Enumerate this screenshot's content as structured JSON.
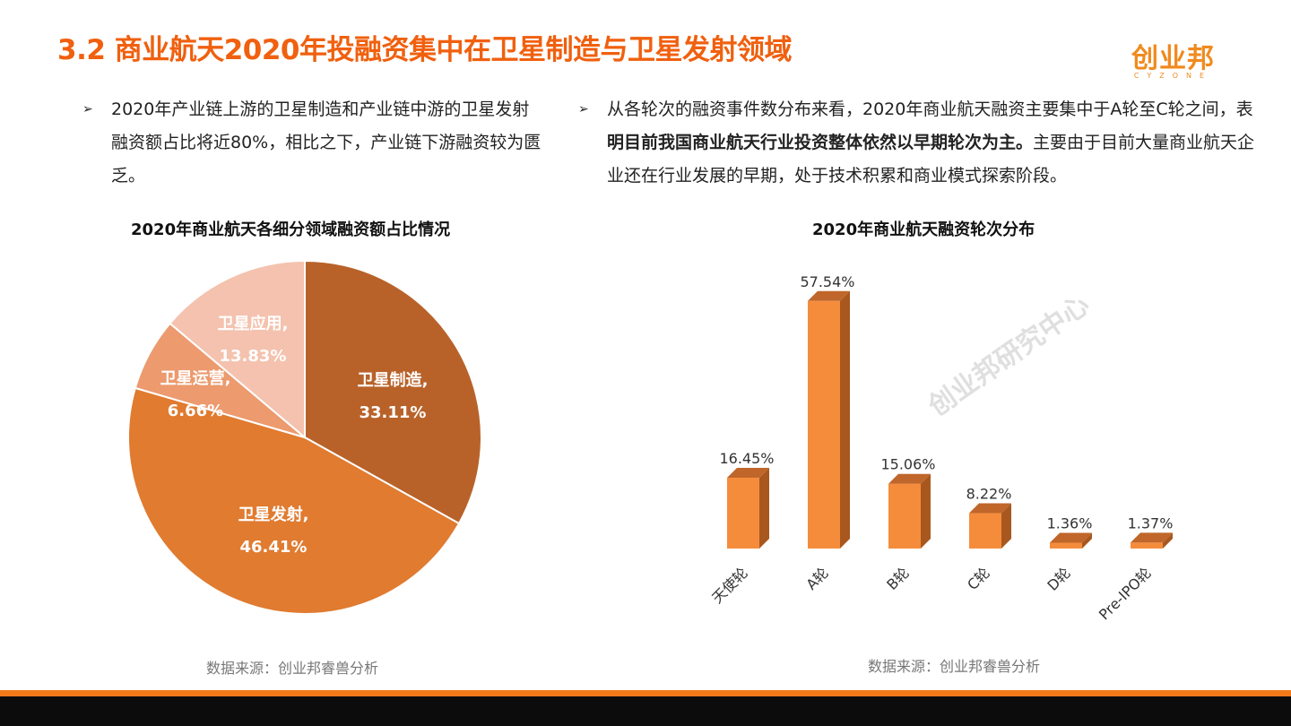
{
  "title": "3.2 商业航天2020年投融资集中在卫星制造与卫星发射领域",
  "logo": {
    "cn": "创业邦",
    "en": "CYZONE"
  },
  "left_bullet": "2020年产业链上游的卫星制造和产业链中游的卫星发射融资额占比将近80%，相比之下，产业链下游融资较为匮乏。",
  "right_bullet": {
    "pre": "从各轮次的融资事件数分布来看，2020年商业航天融资主要集中于A轮至C轮之间，表",
    "bold": "明目前我国商业航天行业投资整体依然以早期轮次为主。",
    "post": "主要由于目前大量商业航天企业还在行业发展的早期，处于技术积累和商业模式探索阶段。"
  },
  "bullet_marker": "➢",
  "source_left": "数据来源：创业邦睿兽分析",
  "source_right": "数据来源：创业邦睿兽分析",
  "watermark": "创业邦研究中心",
  "chart_data": [
    {
      "type": "pie",
      "title": "2020年商业航天各细分领域融资额占比情况",
      "slices": [
        {
          "label": "卫星制造",
          "value": 33.11,
          "display": "33.11%",
          "color": "#B8622A"
        },
        {
          "label": "卫星发射",
          "value": 46.41,
          "display": "46.41%",
          "color": "#E07B30"
        },
        {
          "label": "卫星运营",
          "value": 6.66,
          "display": "6.66%",
          "color": "#EC9A6E"
        },
        {
          "label": "卫星应用",
          "value": 13.83,
          "display": "13.83%",
          "color": "#F4C2AE"
        }
      ]
    },
    {
      "type": "bar",
      "title": "2020年商业航天融资轮次分布",
      "categories": [
        "天使轮",
        "A轮",
        "B轮",
        "C轮",
        "D轮",
        "Pre-IPO轮"
      ],
      "values": [
        16.45,
        57.54,
        15.06,
        8.22,
        1.36,
        1.37
      ],
      "labels": [
        "16.45%",
        "57.54%",
        "15.06%",
        "8.22%",
        "1.36%",
        "1.37%"
      ],
      "colors": {
        "front": "#F58C3C",
        "side": "#A8581F",
        "top": "#C0662A"
      }
    }
  ]
}
